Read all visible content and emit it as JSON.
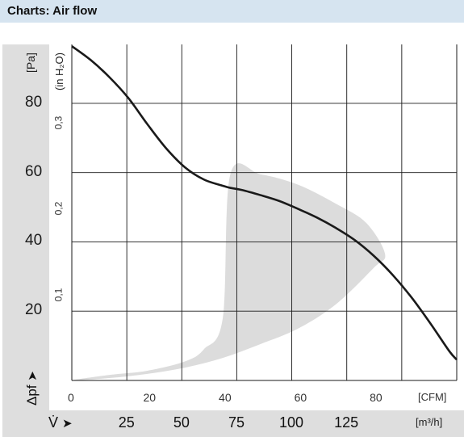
{
  "header": {
    "title": "Charts: Air flow"
  },
  "colors": {
    "header_bg": "#d6e4f0",
    "band_bg": "#dedede",
    "grid": "#1a1a1a",
    "curve": "#1a1a1a",
    "operating_region": "#dcdcdc"
  },
  "chart_data": {
    "type": "line",
    "title": "",
    "xlabel": "",
    "x_unit_cfm": "[CFM]",
    "x_unit_m3h": "[m³/h]",
    "x_symbol": "V̇",
    "ylabel": "Δpf",
    "y_unit_pa": "[Pa]",
    "y_unit_inh2o": "(in H₂O)",
    "xlim_cfm": [
      0,
      102
    ],
    "ylim_pa": [
      0,
      97
    ],
    "x_ticks_cfm": [
      "0",
      "20",
      "40",
      "60",
      "80"
    ],
    "x_ticks_m3h": [
      "25",
      "50",
      "75",
      "100",
      "125"
    ],
    "y_ticks_pa": [
      "20",
      "40",
      "60",
      "80"
    ],
    "y_ticks_inh2o": [
      "0,1",
      "0,2",
      "0,3"
    ],
    "grid": true,
    "series": [
      {
        "x": [
          0,
          5,
          10,
          15,
          20,
          25,
          30,
          35,
          40,
          42,
          45,
          50,
          55,
          60,
          65,
          70,
          75,
          80,
          85,
          90,
          95,
          100,
          102
        ],
        "y": [
          96.5,
          92.5,
          87.5,
          81.5,
          74,
          67,
          61.5,
          58,
          56.2,
          55.6,
          55,
          53.5,
          51.8,
          49.5,
          47,
          44,
          40.5,
          36,
          30.5,
          24,
          16.5,
          8.5,
          6
        ]
      }
    ],
    "operating_region": {
      "x": [
        0,
        10,
        20,
        30,
        35,
        40,
        42,
        50,
        60,
        70,
        78,
        83,
        80,
        70,
        60,
        50,
        40,
        30,
        20,
        10,
        0
      ],
      "y": [
        0,
        1.6,
        2.8,
        5.5,
        9,
        18,
        59.5,
        59.5,
        56.5,
        51,
        45.5,
        36.5,
        32.5,
        22,
        15,
        10.5,
        6.5,
        3.7,
        1.9,
        0.7,
        0
      ]
    }
  }
}
